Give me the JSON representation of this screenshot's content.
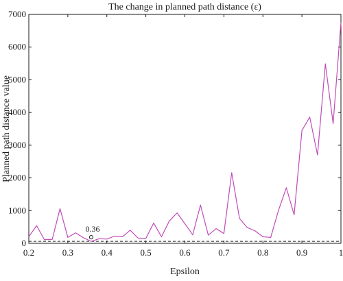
{
  "chart_data": {
    "type": "line",
    "title": "The change in planned path distance (ε)",
    "xlabel": "Epsilon",
    "ylabel": "Planned path distance value",
    "xlim": [
      0.2,
      1.0
    ],
    "ylim": [
      0,
      7000
    ],
    "x_ticks": [
      "0.2",
      "0.3",
      "0.4",
      "0.5",
      "0.6",
      "0.7",
      "0.8",
      "0.9",
      "1"
    ],
    "y_ticks": [
      "0",
      "1000",
      "2000",
      "3000",
      "4000",
      "5000",
      "6000",
      "7000"
    ],
    "grid": false,
    "series": [
      {
        "color": "#c14bb8",
        "x": [
          0.2,
          0.22,
          0.24,
          0.26,
          0.28,
          0.3,
          0.32,
          0.34,
          0.36,
          0.38,
          0.4,
          0.42,
          0.44,
          0.46,
          0.48,
          0.5,
          0.52,
          0.54,
          0.56,
          0.58,
          0.6,
          0.62,
          0.64,
          0.66,
          0.68,
          0.7,
          0.72,
          0.74,
          0.76,
          0.78,
          0.8,
          0.82,
          0.84,
          0.86,
          0.88,
          0.9,
          0.92,
          0.94,
          0.96,
          0.98,
          1.0
        ],
        "y": [
          200,
          540,
          110,
          120,
          1060,
          180,
          320,
          170,
          60,
          140,
          130,
          220,
          200,
          400,
          160,
          150,
          620,
          200,
          680,
          930,
          600,
          260,
          1170,
          250,
          450,
          300,
          2160,
          760,
          480,
          380,
          200,
          180,
          1010,
          1700,
          870,
          3450,
          3860,
          2700,
          5490,
          3660,
          6760
        ]
      }
    ],
    "reference_line": {
      "y": 60,
      "style": "dashed",
      "color": "#1a1a1a"
    },
    "annotation": {
      "x": 0.36,
      "y": 60,
      "text": "0.36",
      "marker": "o"
    }
  }
}
